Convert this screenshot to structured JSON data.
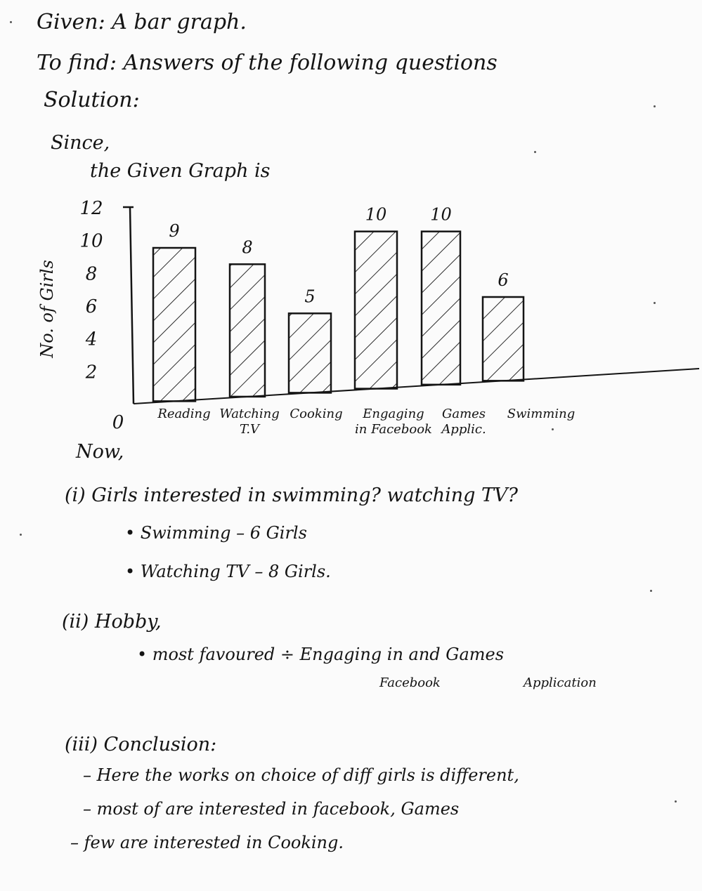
{
  "header": {
    "given": "Given: A bar graph.",
    "to_find": "To find: Answers of the following questions",
    "solution": "Solution:",
    "since": "Since,",
    "graph_intro": "the Given Graph is"
  },
  "chart_data": {
    "type": "bar",
    "title": "",
    "xlabel": "",
    "ylabel": "No. of Girls",
    "ylim": [
      0,
      12
    ],
    "yticks": [
      0,
      2,
      4,
      6,
      8,
      10,
      12
    ],
    "grid": false,
    "bar_style": "hatched",
    "categories": [
      "Reading",
      "Watching T.V",
      "Cooking",
      "Engaging in Facebook",
      "Games Applic.",
      "Swimming"
    ],
    "category_lines": [
      [
        "Reading"
      ],
      [
        "Watching",
        "T.V"
      ],
      [
        "Cooking"
      ],
      [
        "Engaging",
        "in Facebook"
      ],
      [
        "Games",
        "Applic."
      ],
      [
        "Swimming"
      ]
    ],
    "values": [
      9,
      8,
      5,
      10,
      10,
      6
    ],
    "data_labels": [
      "9",
      "8",
      "5",
      "10",
      "10",
      "6"
    ]
  },
  "now": "Now,",
  "q1": {
    "heading": "(i) Girls interested in swimming? watching TV?",
    "answers": [
      "• Swimming – 6 Girls",
      "• Watching TV – 8 Girls."
    ]
  },
  "q2": {
    "heading": "(ii) Hobby,",
    "line1": "• most favoured ÷ Engaging in and Games",
    "line2_a": "Facebook",
    "line2_b": "Application"
  },
  "q3": {
    "heading": "(iii) Conclusion:",
    "points": [
      "– Here the works on choice of diff girls is different,",
      "– most of are interested in facebook, Games",
      "– few are interested in Cooking."
    ]
  }
}
